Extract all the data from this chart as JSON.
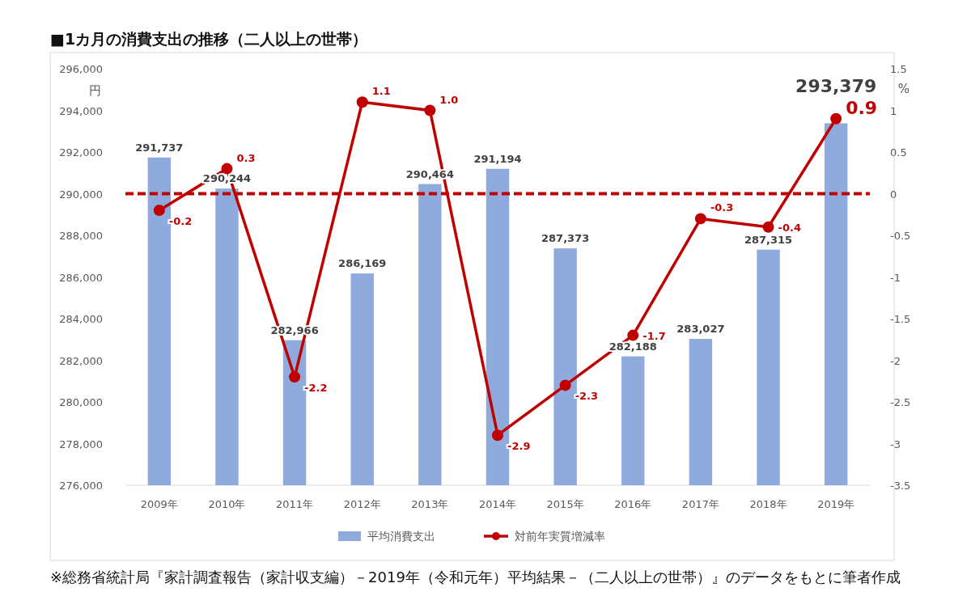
{
  "chart_data": {
    "type": "bar",
    "title": "■1カ月の消費支出の推移（二人以上の世帯）",
    "categories": [
      "2009年",
      "2010年",
      "2011年",
      "2012年",
      "2013年",
      "2014年",
      "2015年",
      "2016年",
      "2017年",
      "2018年",
      "2019年"
    ],
    "series": [
      {
        "name": "平均消費支出",
        "color": "#8faadc",
        "values": [
          291737,
          290244,
          282966,
          286169,
          290464,
          291194,
          287373,
          282188,
          283027,
          287315,
          293379
        ],
        "value_labels": [
          "291,737",
          "290,244",
          "282,966",
          "286,169",
          "290,464",
          "291,194",
          "287,373",
          "282,188",
          "283,027",
          "287,315",
          "293,379"
        ]
      },
      {
        "name": "対前年実質増減率",
        "type": "line",
        "axis": "y2",
        "color": "#c00000",
        "marker": "circle",
        "values": [
          -0.2,
          0.3,
          -2.2,
          1.1,
          1.0,
          -2.9,
          -2.3,
          -1.7,
          -0.3,
          -0.4,
          0.9
        ],
        "value_labels": [
          "-0.2",
          "0.3",
          "-2.2",
          "1.1",
          "1.0",
          "-2.9",
          "-2.3",
          "-1.7",
          "-0.3",
          "-0.4",
          "0.9"
        ]
      }
    ],
    "ylabel": "円",
    "y2label": "%",
    "ylim": [
      276000,
      296000
    ],
    "yticks": [
      {
        "value": 276000,
        "label": "276,000"
      },
      {
        "value": 278000,
        "label": "278,000"
      },
      {
        "value": 280000,
        "label": "280,000"
      },
      {
        "value": 282000,
        "label": "282,000"
      },
      {
        "value": 284000,
        "label": "284,000"
      },
      {
        "value": 286000,
        "label": "286,000"
      },
      {
        "value": 288000,
        "label": "288,000"
      },
      {
        "value": 290000,
        "label": "290,000"
      },
      {
        "value": 292000,
        "label": "292,000"
      },
      {
        "value": 294000,
        "label": "294,000"
      },
      {
        "value": 296000,
        "label": "296,000"
      }
    ],
    "y2lim": [
      -3.5,
      1.5
    ],
    "y2ticks": [
      -3.5,
      -3,
      -2.5,
      -2,
      -1.5,
      -1,
      -0.5,
      0,
      0.5,
      1,
      1.5
    ],
    "ref_lines": [
      {
        "axis": "y2",
        "value": 0,
        "color": "#c00000",
        "line_style": "dashed"
      }
    ],
    "legend": "bottom",
    "annotations": [
      "※総務省統計局『家計調査報告（家計収支編）－2019年（令和元年）平均結果－（二人以上の世帯）』のデータをもとに筆者作成"
    ]
  }
}
